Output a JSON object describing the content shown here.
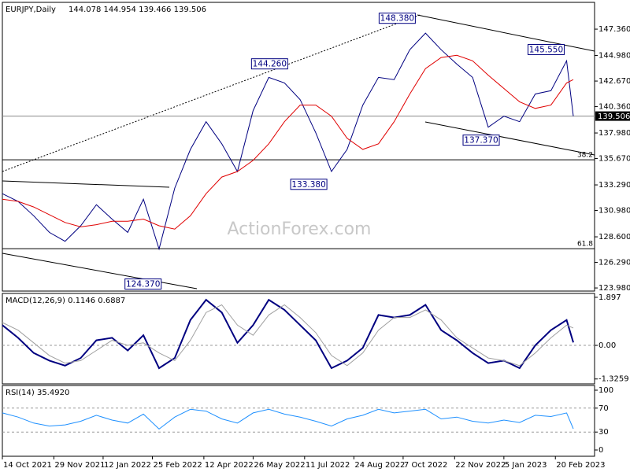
{
  "chart_data": [
    {
      "type": "line",
      "title": "EURJPY,Daily",
      "subtitle": "144.078 144.954 139.466 139.506",
      "watermark": "ActionForex.com",
      "x": [
        "14 Oct 2021",
        "28 Oct 2021",
        "11 Nov 2021",
        "25 Nov 2021",
        "9 Dec 2021",
        "23 Dec 2021",
        "6 Jan 2022",
        "20 Jan 2022",
        "3 Feb 2022",
        "17 Feb 2022",
        "3 Mar 2022",
        "17 Mar 2022",
        "31 Mar 2022",
        "14 Apr 2022",
        "28 Apr 2022",
        "12 May 2022",
        "26 May 2022",
        "9 Jun 2022",
        "23 Jun 2022",
        "7 Jul 2022",
        "21 Jul 2022",
        "4 Aug 2022",
        "18 Aug 2022",
        "1 Sep 2022",
        "15 Sep 2022",
        "29 Sep 2022",
        "13 Oct 2022",
        "27 Oct 2022",
        "10 Nov 2022",
        "24 Nov 2022",
        "8 Dec 2022",
        "22 Dec 2022",
        "5 Jan 2023",
        "19 Jan 2023",
        "2 Feb 2023",
        "16 Feb 2023",
        "2 Mar 2023",
        "8 Mar 2023"
      ],
      "series": [
        {
          "color": "#000080",
          "values": [
            132.5,
            131.8,
            130.5,
            129.0,
            128.2,
            129.6,
            131.5,
            130.2,
            129.0,
            132.0,
            127.5,
            133.0,
            136.5,
            139.0,
            137.0,
            134.5,
            140.0,
            143.0,
            142.5,
            141.0,
            138.0,
            134.5,
            136.5,
            140.5,
            143.0,
            142.8,
            145.5,
            147.0,
            145.5,
            144.2,
            143.0,
            138.5,
            139.5,
            139.0,
            141.5,
            141.8,
            144.5,
            139.506
          ]
        },
        {
          "color": "#e00000",
          "values": [
            132.0,
            131.8,
            131.3,
            130.6,
            129.9,
            129.5,
            129.7,
            130.0,
            130.0,
            130.2,
            129.6,
            129.3,
            130.5,
            132.5,
            134.0,
            134.5,
            135.5,
            137.0,
            139.0,
            140.5,
            140.5,
            139.5,
            137.5,
            136.5,
            137.0,
            139.0,
            141.5,
            143.8,
            144.8,
            145.0,
            144.5,
            143.2,
            142.0,
            140.8,
            140.2,
            140.5,
            142.5,
            142.8
          ]
        }
      ],
      "last_price": 139.506,
      "annotations": [
        {
          "label": "148.380",
          "x": "20 Oct 2022",
          "y": 148.38
        },
        {
          "label": "144.260",
          "x": "28 Jun 2022",
          "y": 144.26
        },
        {
          "label": "145.550",
          "x": "2 Mar 2023",
          "y": 145.55
        },
        {
          "label": "137.370",
          "x": "3 Jan 2023",
          "y": 137.37
        },
        {
          "label": "133.380",
          "x": "2 Aug 2022",
          "y": 133.38
        },
        {
          "label": "124.370",
          "x": "7 Mar 2022",
          "y": 124.37
        }
      ],
      "levels": [
        {
          "name": "38.2",
          "y": 135.56
        },
        {
          "name": "61.8",
          "y": 127.53
        }
      ],
      "xlim": [
        "14 Oct 2021",
        "27 Mar 2023"
      ],
      "xticks": [
        "14 Oct 2021",
        "29 Nov 2021",
        "12 Jan 2022",
        "25 Feb 2022",
        "12 Apr 2022",
        "26 May 2022",
        "11 Jul 2022",
        "24 Aug 2022",
        "7 Oct 2022",
        "22 Nov 2022",
        "5 Jan 2023",
        "20 Feb 2023"
      ],
      "ylim": [
        123.7,
        149.78
      ],
      "yticks": [
        {
          "value": 147.36,
          "label": "147.360"
        },
        {
          "value": 144.98,
          "label": "144.980"
        },
        {
          "value": 142.67,
          "label": "142.670"
        },
        {
          "value": 140.36,
          "label": "140.360"
        },
        {
          "value": 137.98,
          "label": "137.980"
        },
        {
          "value": 135.67,
          "label": "135.670"
        },
        {
          "value": 133.29,
          "label": "133.290"
        },
        {
          "value": 130.98,
          "label": "130.980"
        },
        {
          "value": 128.6,
          "label": "128.600"
        },
        {
          "value": 126.29,
          "label": "126.290"
        },
        {
          "value": 123.98,
          "label": "123.980"
        }
      ]
    },
    {
      "type": "line",
      "title": "MACD(12,26,9) 0.1146 0.6887",
      "series": [
        {
          "color": "#000080",
          "values": [
            0.8,
            0.3,
            -0.3,
            -0.6,
            -0.8,
            -0.5,
            0.2,
            0.3,
            -0.2,
            0.4,
            -0.9,
            -0.5,
            1.0,
            1.8,
            1.3,
            0.1,
            0.8,
            1.8,
            1.4,
            0.8,
            0.2,
            -0.9,
            -0.6,
            -0.1,
            1.2,
            1.1,
            1.2,
            1.6,
            0.6,
            0.2,
            -0.3,
            -0.7,
            -0.6,
            -0.9,
            0.0,
            0.6,
            1.0,
            0.1146
          ]
        },
        {
          "color": "#a0a0a0",
          "values": [
            0.9,
            0.6,
            0.1,
            -0.4,
            -0.7,
            -0.6,
            -0.2,
            0.2,
            0.0,
            0.1,
            -0.3,
            -0.6,
            0.2,
            1.3,
            1.6,
            0.8,
            0.4,
            1.2,
            1.6,
            1.1,
            0.5,
            -0.4,
            -0.8,
            -0.3,
            0.6,
            1.1,
            1.1,
            1.4,
            1.0,
            0.3,
            -0.1,
            -0.5,
            -0.6,
            -0.8,
            -0.3,
            0.3,
            0.8,
            0.6887
          ]
        }
      ],
      "ylim": [
        -1.52,
        2.05
      ],
      "yticks": [
        1.897,
        {
          "value": 0,
          "label": "0.00"
        },
        -1.3259
      ],
      "dashed": [
        0
      ]
    },
    {
      "type": "line",
      "title": "RSI(14) 35.4920",
      "series": [
        {
          "color": "#1e90ff",
          "values": [
            62,
            55,
            45,
            40,
            42,
            48,
            58,
            50,
            45,
            60,
            35,
            55,
            68,
            65,
            52,
            45,
            62,
            68,
            60,
            55,
            48,
            40,
            52,
            58,
            68,
            62,
            65,
            68,
            52,
            55,
            48,
            45,
            50,
            46,
            58,
            56,
            62,
            35.492
          ]
        }
      ],
      "ylim": [
        -10.5,
        107.9
      ],
      "yticks": [
        100,
        70,
        30,
        0
      ],
      "dashed": [
        70,
        30
      ]
    }
  ]
}
